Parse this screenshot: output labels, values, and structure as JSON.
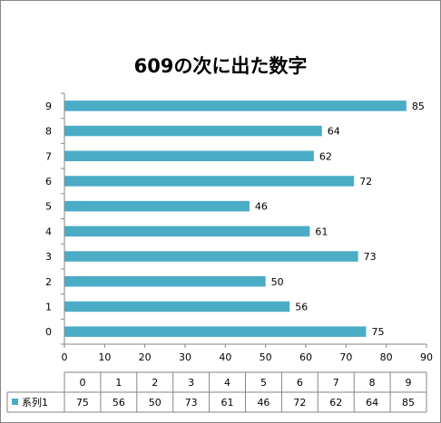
{
  "chart_data": {
    "type": "bar",
    "orientation": "horizontal",
    "title": "609の次に出た数字",
    "categories": [
      "0",
      "1",
      "2",
      "3",
      "4",
      "5",
      "6",
      "7",
      "8",
      "9"
    ],
    "series": [
      {
        "name": "系列1",
        "values": [
          75,
          56,
          50,
          73,
          61,
          46,
          72,
          62,
          64,
          85
        ]
      }
    ],
    "xlim": [
      0,
      90
    ],
    "x_ticks": [
      0,
      10,
      20,
      30,
      40,
      50,
      60,
      70,
      80,
      90
    ],
    "grid": false,
    "data_labels": true,
    "data_table": true,
    "colors": {
      "bar": "#4BACC6",
      "axis": "#868686",
      "border": "#868686",
      "text": "#000000"
    }
  }
}
